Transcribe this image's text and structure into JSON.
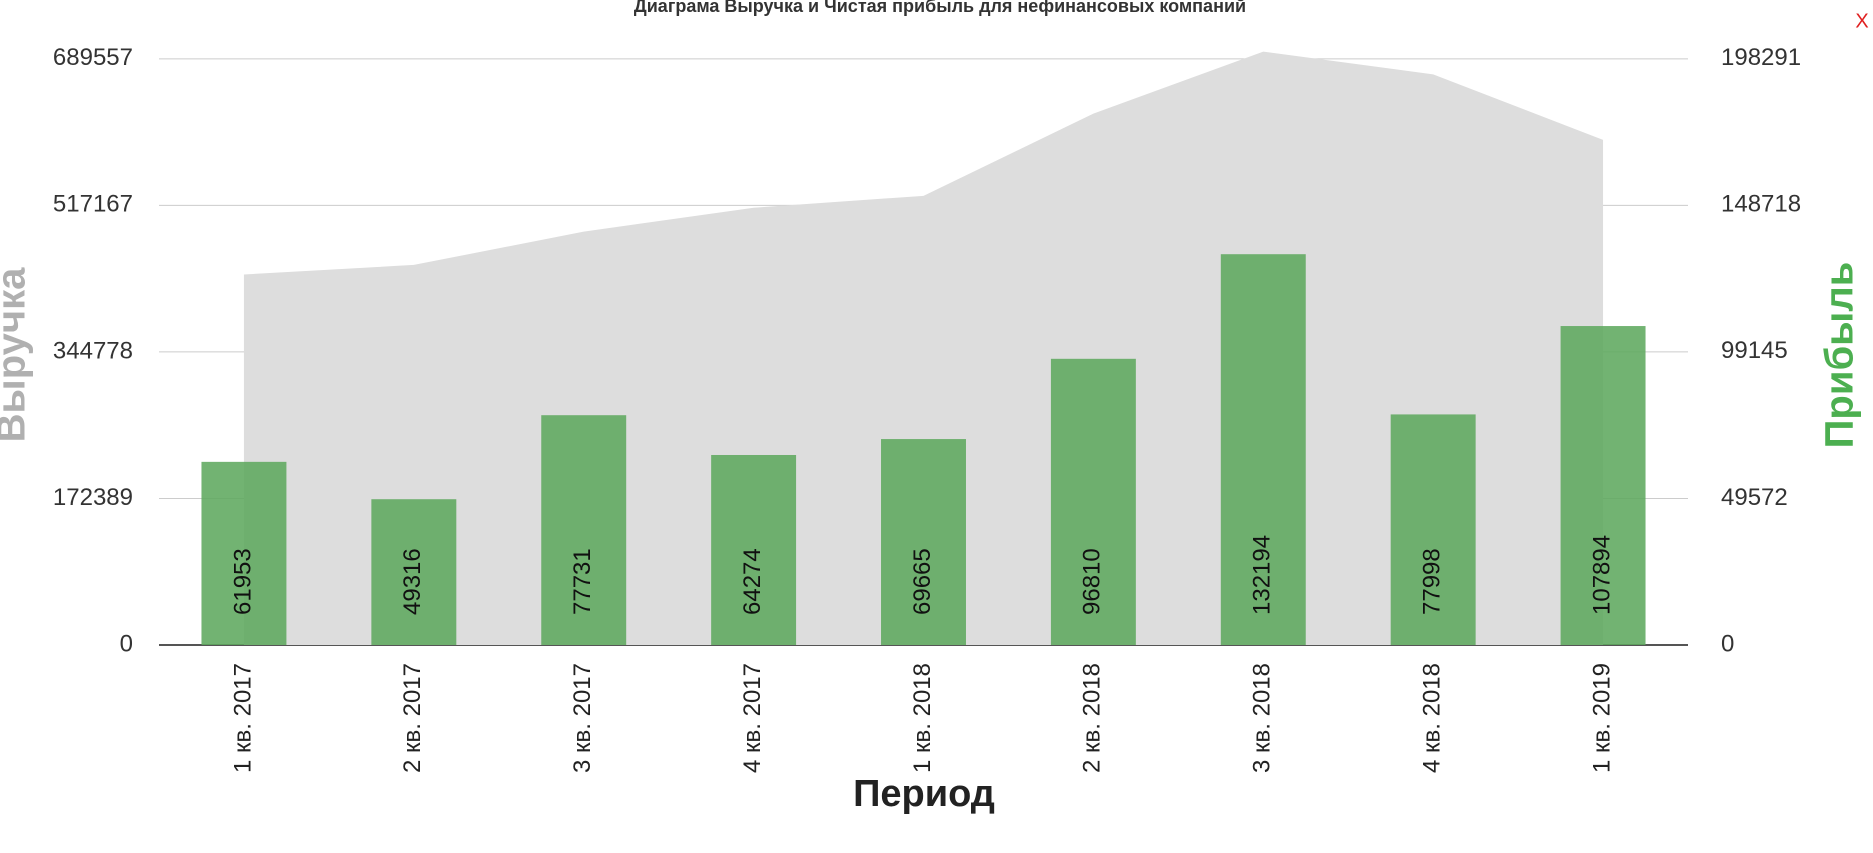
{
  "chart_data": {
    "type": "combo",
    "title": "Диаграма Выручка и Чистая прибыль для нефинансовых компаний",
    "close_button": "X",
    "x_label": "Период",
    "y_label": "Выручка",
    "y2_label": "Прибыль",
    "categories": [
      "1 кв. 2017",
      "2 кв. 2017",
      "3 кв. 2017",
      "4 кв. 2017",
      "1 кв. 2018",
      "2 кв. 2018",
      "3 кв. 2018",
      "4 кв. 2018",
      "1 кв. 2019"
    ],
    "series": [
      {
        "type": "area",
        "color": "#dddddd",
        "values": [
          435900,
          447100,
          486300,
          514400,
          528400,
          625100,
          698000,
          671300,
          594200
        ]
      },
      {
        "type": "bar",
        "axis": "y2",
        "color": "#5fa85f",
        "values": [
          61953,
          49316,
          77731,
          64274,
          69665,
          96810,
          132194,
          77998,
          107894
        ]
      }
    ],
    "ylim": [
      0,
      707000
    ],
    "yticks": [
      0,
      172389,
      344778,
      517167,
      689557
    ],
    "y2lim": [
      0,
      203300
    ],
    "y2ticks": [
      0,
      49572,
      99145,
      148718,
      198291
    ],
    "grid": true
  }
}
